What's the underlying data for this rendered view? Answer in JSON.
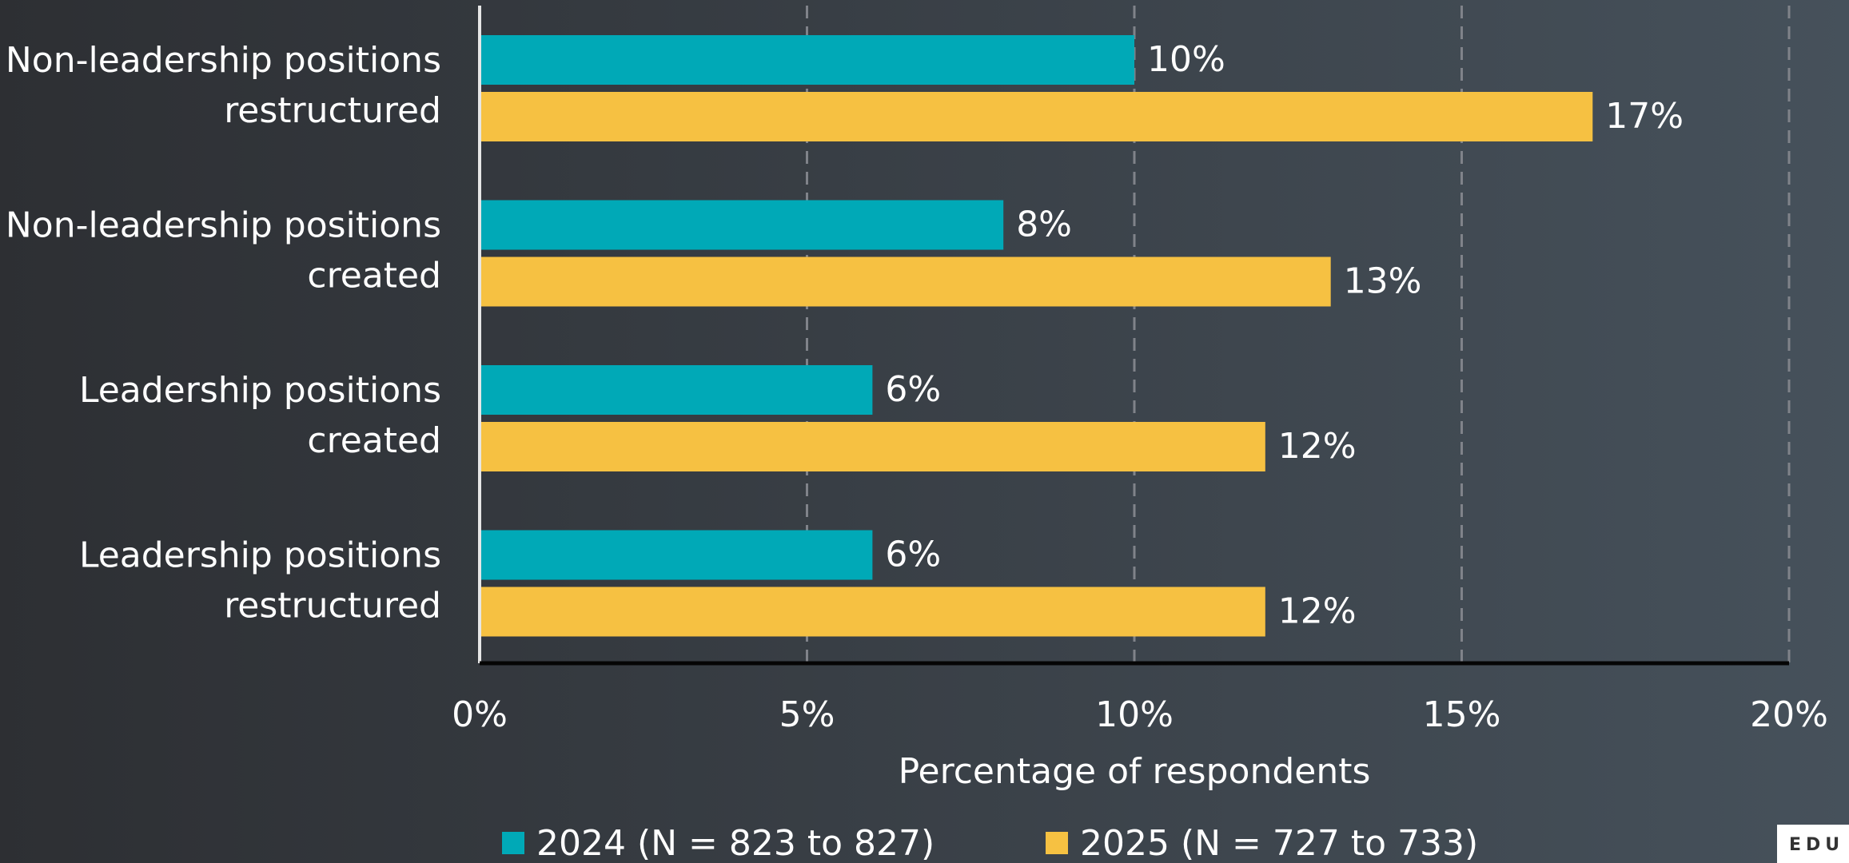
{
  "chart_data": {
    "type": "bar",
    "orientation": "horizontal",
    "xlabel": "Percentage of respondents",
    "categories": [
      [
        "Non-leadership positions",
        "restructured"
      ],
      [
        "Non-leadership positions",
        "created"
      ],
      [
        "Leadership positions",
        "created"
      ],
      [
        "Leadership positions",
        "restructured"
      ]
    ],
    "series": [
      {
        "name": "2024 (N = 823 to 827)",
        "color": "#00a9b7",
        "values": [
          10,
          8,
          6,
          6
        ],
        "value_labels": [
          "10%",
          "8%",
          "6%",
          "6%"
        ]
      },
      {
        "name": "2025 (N = 727 to 733)",
        "color": "#f6c142",
        "values": [
          17,
          13,
          12,
          12
        ],
        "value_labels": [
          "17%",
          "13%",
          "12%",
          "12%"
        ]
      }
    ],
    "xlim": [
      0,
      20
    ],
    "xticks": [
      {
        "value": 0,
        "label": "0%"
      },
      {
        "value": 5,
        "label": "5%"
      },
      {
        "value": 10,
        "label": "10%"
      },
      {
        "value": 15,
        "label": "15%"
      },
      {
        "value": 20,
        "label": "20%"
      }
    ],
    "grid": true,
    "legend": "bottom"
  },
  "logo": "EDU"
}
